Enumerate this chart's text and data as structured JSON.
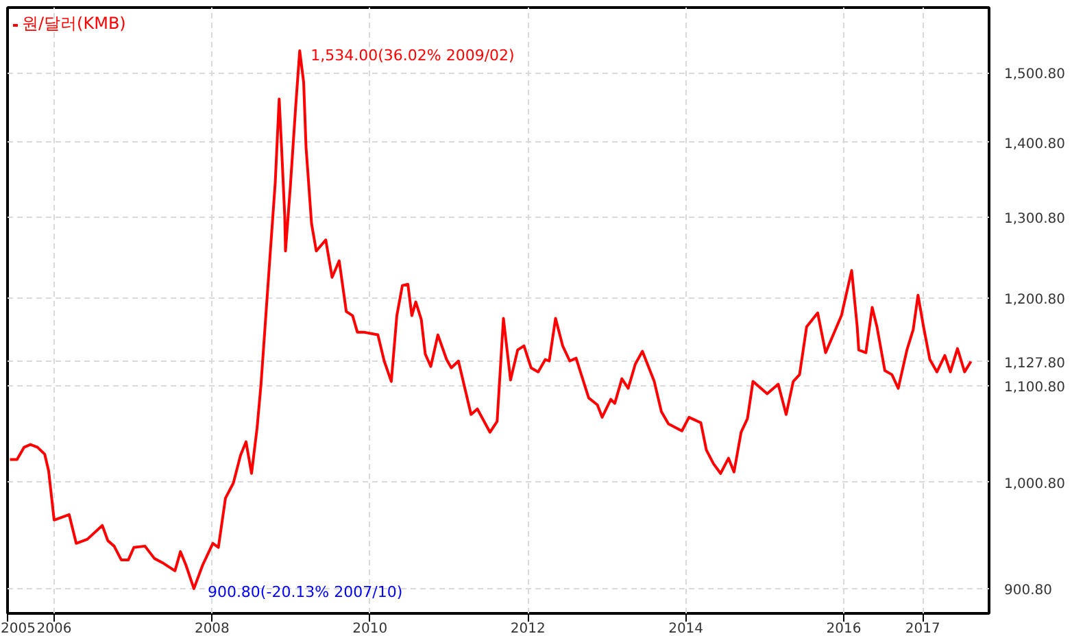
{
  "chart_data": {
    "type": "line",
    "log": "y",
    "grid": true,
    "legend": "top left",
    "marker": "none",
    "line_style": "solid",
    "xlim": [
      2005.41,
      2017.84
    ],
    "xticks": [
      {
        "value": 2005.41,
        "label": "2005"
      },
      2006,
      2008,
      2010,
      2012,
      2014,
      2016,
      2017
    ],
    "ylim": [
      879,
      1601
    ],
    "yticks": [
      {
        "value": 900.8,
        "label": "900.80"
      },
      {
        "value": 1000.8,
        "label": "1,000.80"
      },
      {
        "value": 1100.8,
        "label": "1,100.80"
      },
      {
        "value": 1127.8,
        "label": "1,127.80"
      },
      {
        "value": 1200.8,
        "label": "1,200.80"
      },
      {
        "value": 1300.8,
        "label": "1,300.80"
      },
      {
        "value": 1400.8,
        "label": "1,400.80"
      },
      {
        "value": 1500.8,
        "label": "1,500.80"
      }
    ],
    "annotations": [
      {
        "text": "1,534.00(36.02% 2009/02)",
        "x": 2009.11,
        "y": 1534.0
      },
      {
        "text": "900.80(-20.13% 2007/10)",
        "x": 2007.77,
        "y": 900.8
      }
    ],
    "series": [
      {
        "name": "원/달러(KMB)",
        "color": "#ff0000",
        "x": [
          2005.44,
          2005.53,
          2005.62,
          2005.7,
          2005.79,
          2005.88,
          2005.93,
          2006.0,
          2006.19,
          2006.28,
          2006.42,
          2006.61,
          2006.68,
          2006.76,
          2006.85,
          2006.94,
          2007.01,
          2007.15,
          2007.27,
          2007.37,
          2007.53,
          2007.6,
          2007.67,
          2007.77,
          2007.88,
          2008.01,
          2008.08,
          2008.17,
          2008.27,
          2008.36,
          2008.43,
          2008.5,
          2008.57,
          2008.62,
          2008.73,
          2008.8,
          2008.85,
          2008.88,
          2008.92,
          2008.93,
          2008.99,
          2009.06,
          2009.11,
          2009.16,
          2009.19,
          2009.26,
          2009.32,
          2009.44,
          2009.52,
          2009.61,
          2009.7,
          2009.78,
          2009.84,
          2009.92,
          2010.1,
          2010.18,
          2010.27,
          2010.34,
          2010.41,
          2010.48,
          2010.53,
          2010.58,
          2010.65,
          2010.7,
          2010.77,
          2010.86,
          2010.97,
          2011.03,
          2011.12,
          2011.28,
          2011.36,
          2011.52,
          2011.61,
          2011.69,
          2011.78,
          2011.87,
          2011.95,
          2012.04,
          2012.13,
          2012.22,
          2012.27,
          2012.35,
          2012.44,
          2012.53,
          2012.61,
          2012.77,
          2012.88,
          2012.94,
          2013.05,
          2013.1,
          2013.19,
          2013.27,
          2013.36,
          2013.45,
          2013.6,
          2013.69,
          2013.78,
          2013.95,
          2014.04,
          2014.19,
          2014.26,
          2014.35,
          2014.44,
          2014.54,
          2014.61,
          2014.7,
          2014.78,
          2014.85,
          2015.03,
          2015.17,
          2015.27,
          2015.36,
          2015.44,
          2015.53,
          2015.67,
          2015.77,
          2015.97,
          2016.1,
          2016.17,
          2016.19,
          2016.28,
          2016.36,
          2016.42,
          2016.52,
          2016.61,
          2016.69,
          2016.8,
          2016.88,
          2016.94,
          2017.01,
          2017.09,
          2017.18,
          2017.28,
          2017.35,
          2017.44,
          2017.53,
          2017.61
        ],
        "values": [
          1023.5,
          1023.5,
          1036.1,
          1038.9,
          1036.1,
          1029.1,
          1012.4,
          964.1,
          969.3,
          942.1,
          945.9,
          958.9,
          944.6,
          939.5,
          926.8,
          926.8,
          938.3,
          939.5,
          928.1,
          924.3,
          916.8,
          934.4,
          921.9,
          900.8,
          921.9,
          942.1,
          938.3,
          985.2,
          1000.1,
          1027.7,
          1041.7,
          1009.6,
          1055.8,
          1102.8,
          1246.1,
          1346.2,
          1462.5,
          1394.8,
          1303.3,
          1258.2,
          1339.0,
          1453.0,
          1534.0,
          1486.8,
          1394.8,
          1292.7,
          1258.2,
          1272.1,
          1225.8,
          1246.1,
          1185.0,
          1180.2,
          1161.1,
          1161.1,
          1158.0,
          1128.4,
          1105.8,
          1180.2,
          1215.9,
          1217.5,
          1180.2,
          1196.3,
          1175.5,
          1136.2,
          1122.3,
          1158.0,
          1130.1,
          1120.8,
          1128.4,
          1070.2,
          1076.1,
          1051.6,
          1062.9,
          1177.0,
          1107.3,
          1140.8,
          1145.5,
          1120.8,
          1116.3,
          1130.1,
          1128.4,
          1177.0,
          1145.5,
          1128.4,
          1131.6,
          1087.9,
          1080.5,
          1067.3,
          1086.4,
          1082.0,
          1108.8,
          1098.3,
          1125.0,
          1139.3,
          1105.8,
          1073.3,
          1060.3,
          1053.0,
          1067.3,
          1061.5,
          1033.3,
          1019.3,
          1009.6,
          1024.9,
          1011.0,
          1051.6,
          1065.8,
          1105.8,
          1092.4,
          1102.8,
          1070.2,
          1105.8,
          1113.3,
          1167.4,
          1183.4,
          1137.7,
          1180.2,
          1234.2,
          1167.4,
          1140.8,
          1137.7,
          1189.9,
          1167.4,
          1117.8,
          1113.3,
          1098.3,
          1140.8,
          1164.3,
          1204.4,
          1167.4,
          1130.1,
          1116.3,
          1134.6,
          1116.3,
          1142.4,
          1116.3,
          1127.8
        ]
      }
    ]
  }
}
